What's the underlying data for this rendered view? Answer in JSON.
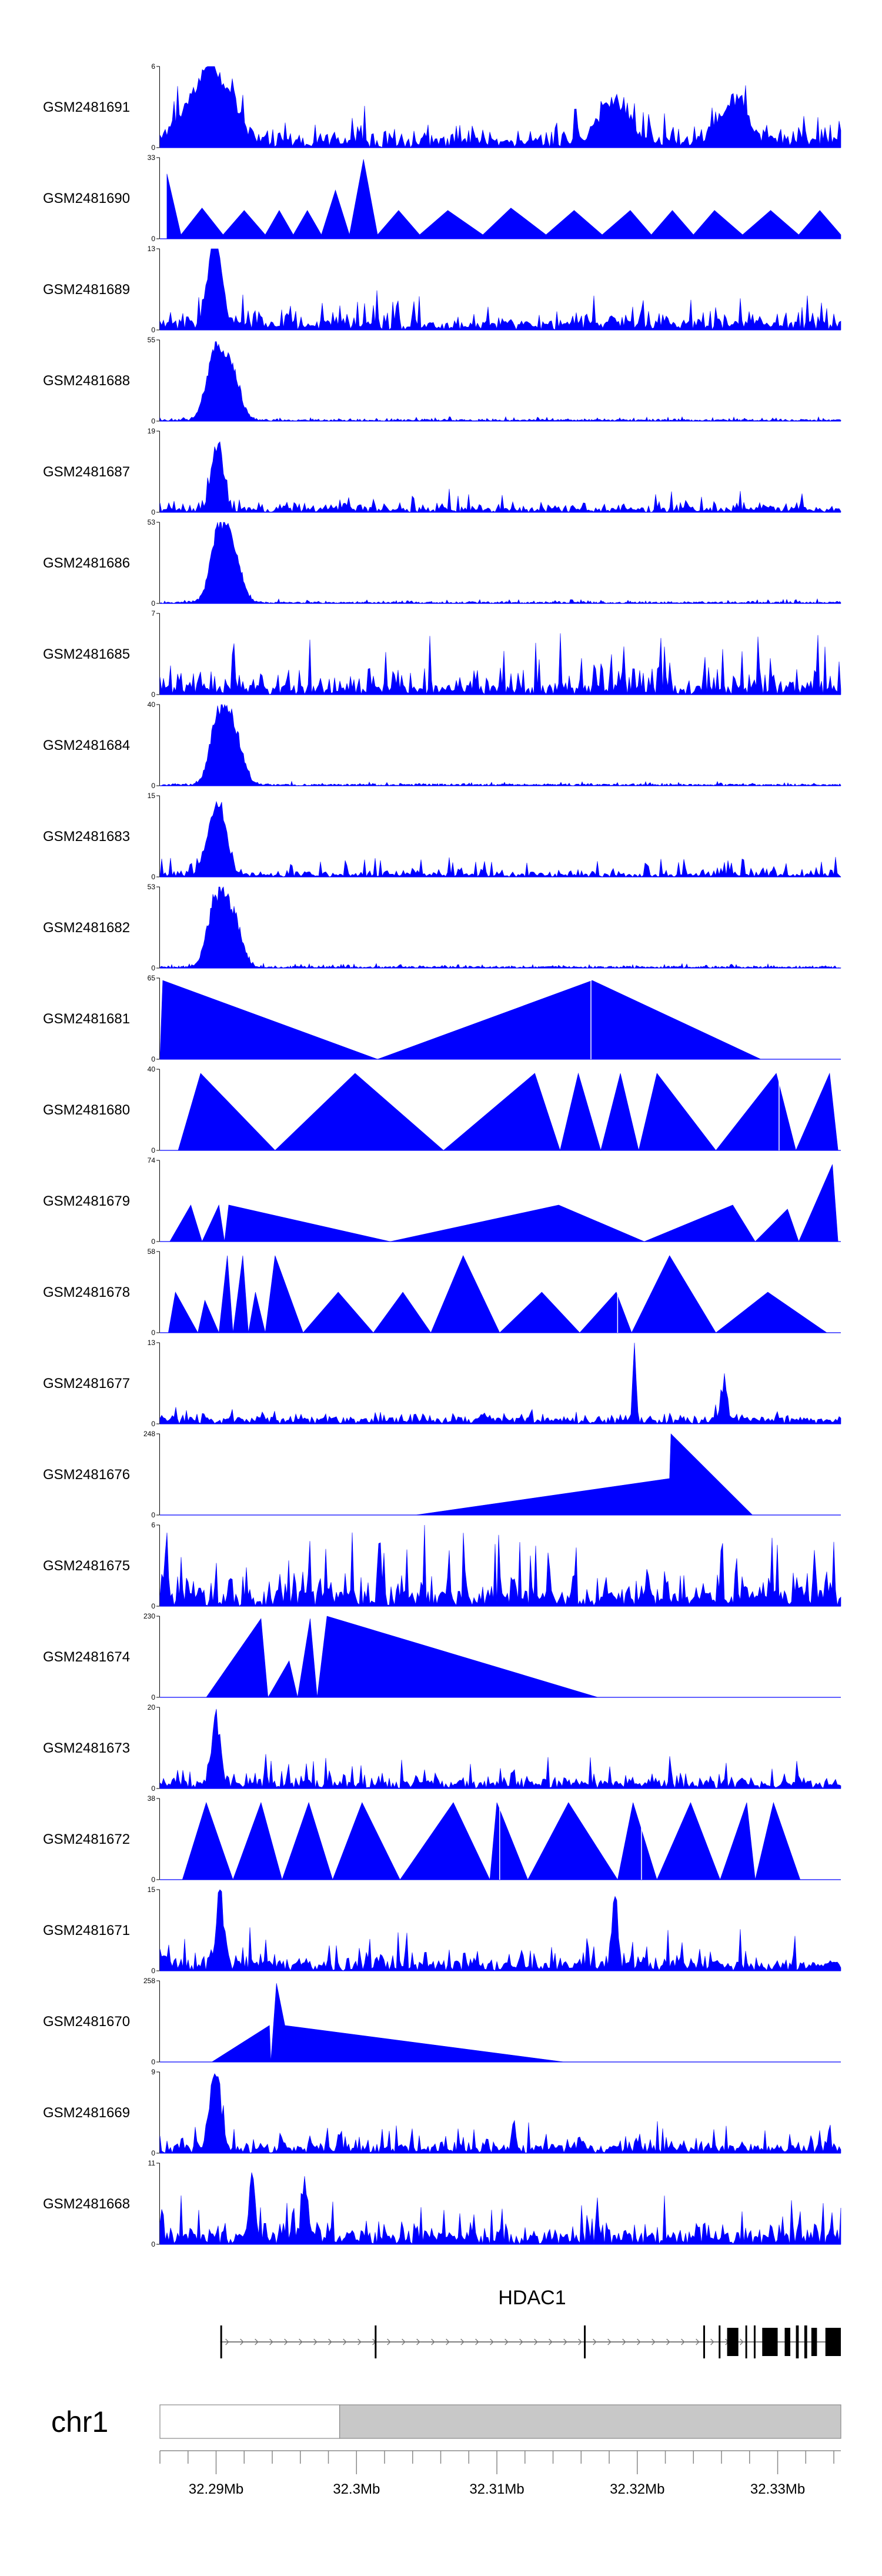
{
  "chart_data": {
    "type": "area",
    "fill_color": "#0000ff",
    "region_start_mb": 32.286,
    "region_end_mb": 32.3345,
    "tracks": [
      {
        "name": "GSM2481691",
        "ymax": "6",
        "ymin": "0",
        "profile": "noise",
        "baseline": 0.12,
        "noise": 0.5,
        "peaks": [
          [
            32.2895,
            1.0,
            0.0015
          ],
          [
            32.3183,
            0.6,
            0.001
          ],
          [
            32.3268,
            0.55,
            0.001
          ]
        ],
        "ghost_x": []
      },
      {
        "name": "GSM2481690",
        "ymax": "33",
        "ymin": "0",
        "profile": "tri",
        "baseline": 0,
        "noise": 0,
        "peaks": [
          [
            32.2865,
            0.8
          ],
          [
            32.2875,
            0.05
          ],
          [
            32.289,
            0.38
          ],
          [
            32.2905,
            0.05
          ],
          [
            32.292,
            0.35
          ],
          [
            32.2935,
            0.05
          ],
          [
            32.2945,
            0.35
          ],
          [
            32.2955,
            0.05
          ],
          [
            32.2965,
            0.35
          ],
          [
            32.2975,
            0.05
          ],
          [
            32.2985,
            0.6
          ],
          [
            32.2995,
            0.05
          ],
          [
            32.3005,
            0.98
          ],
          [
            32.3015,
            0.05
          ],
          [
            32.303,
            0.35
          ],
          [
            32.3045,
            0.05
          ],
          [
            32.3065,
            0.35
          ],
          [
            32.309,
            0.05
          ],
          [
            32.311,
            0.38
          ],
          [
            32.3135,
            0.05
          ],
          [
            32.3155,
            0.35
          ],
          [
            32.3175,
            0.05
          ],
          [
            32.3195,
            0.35
          ],
          [
            32.321,
            0.05
          ],
          [
            32.3225,
            0.35
          ],
          [
            32.324,
            0.05
          ],
          [
            32.3255,
            0.35
          ],
          [
            32.3275,
            0.05
          ],
          [
            32.3295,
            0.35
          ],
          [
            32.3315,
            0.05
          ],
          [
            32.333,
            0.35
          ],
          [
            32.3345,
            0.05
          ]
        ],
        "ghost_x": []
      },
      {
        "name": "GSM2481689",
        "ymax": "13",
        "ymin": "0",
        "profile": "noise",
        "baseline": 0.12,
        "noise": 0.38,
        "peaks": [
          [
            32.2901,
            0.9,
            0.0004
          ],
          [
            32.2896,
            0.6,
            0.0004
          ]
        ],
        "ghost_x": []
      },
      {
        "name": "GSM2481688",
        "ymax": "55",
        "ymin": "0",
        "profile": "peak",
        "baseline": 0.02,
        "noise": 0.04,
        "peaks": [
          [
            32.2899,
            0.95,
            0.0006
          ],
          [
            32.2911,
            0.7,
            0.0006
          ]
        ],
        "ghost_x": []
      },
      {
        "name": "GSM2481687",
        "ymax": "19",
        "ymin": "0",
        "profile": "noise",
        "baseline": 0.06,
        "noise": 0.25,
        "peaks": [
          [
            32.2901,
            0.95,
            0.0004
          ]
        ],
        "ghost_x": []
      },
      {
        "name": "GSM2481686",
        "ymax": "53",
        "ymin": "0",
        "profile": "peak",
        "baseline": 0.02,
        "noise": 0.04,
        "peaks": [
          [
            32.2902,
            0.95,
            0.0006
          ],
          [
            32.2912,
            0.65,
            0.0006
          ]
        ],
        "ghost_x": []
      },
      {
        "name": "GSM2481685",
        "ymax": "7",
        "ymin": "0",
        "profile": "noise",
        "baseline": 0.12,
        "noise": 0.7,
        "peaks": [],
        "ghost_x": []
      },
      {
        "name": "GSM2481684",
        "ymax": "40",
        "ymin": "0",
        "profile": "peak",
        "baseline": 0.02,
        "noise": 0.04,
        "peaks": [
          [
            32.2902,
            0.95,
            0.0006
          ],
          [
            32.2913,
            0.7,
            0.0006
          ]
        ],
        "ghost_x": []
      },
      {
        "name": "GSM2481683",
        "ymax": "15",
        "ymin": "0",
        "profile": "noise",
        "baseline": 0.04,
        "noise": 0.22,
        "peaks": [
          [
            32.2903,
            0.9,
            0.0005
          ],
          [
            32.2895,
            0.4,
            0.0005
          ]
        ],
        "ghost_x": []
      },
      {
        "name": "GSM2481682",
        "ymax": "53",
        "ymin": "0",
        "profile": "peak",
        "baseline": 0.02,
        "noise": 0.04,
        "peaks": [
          [
            32.29,
            0.95,
            0.0006
          ],
          [
            32.2912,
            0.7,
            0.0006
          ]
        ],
        "ghost_x": []
      },
      {
        "name": "GSM2481681",
        "ymax": "65",
        "ymin": "0",
        "profile": "tri",
        "baseline": 0,
        "noise": 0,
        "peaks": [
          [
            32.286,
            0.0
          ],
          [
            32.2862,
            0.97
          ],
          [
            32.3015,
            0.0
          ],
          [
            32.3168,
            0.97
          ],
          [
            32.3288,
            0.0
          ]
        ],
        "ghost_x": [
          32.3167
        ]
      },
      {
        "name": "GSM2481680",
        "ymax": "40",
        "ymin": "0",
        "profile": "tri",
        "baseline": 0,
        "noise": 0,
        "peaks": [
          [
            32.2873,
            0.0
          ],
          [
            32.2889,
            0.95
          ],
          [
            32.2942,
            0.0
          ],
          [
            32.2999,
            0.95
          ],
          [
            32.3062,
            0.0
          ],
          [
            32.3127,
            0.95
          ],
          [
            32.3145,
            0.0
          ],
          [
            32.3158,
            0.95
          ],
          [
            32.3174,
            0.0
          ],
          [
            32.3188,
            0.95
          ],
          [
            32.3201,
            0.0
          ],
          [
            32.3214,
            0.95
          ],
          [
            32.3256,
            0.0
          ],
          [
            32.3299,
            0.95
          ],
          [
            32.3313,
            0.0
          ],
          [
            32.3337,
            0.95
          ],
          [
            32.3343,
            0.0
          ]
        ],
        "ghost_x": [
          32.3301
        ]
      },
      {
        "name": "GSM2481679",
        "ymax": "74",
        "ymin": "0",
        "profile": "tri",
        "baseline": 0,
        "noise": 0,
        "peaks": [
          [
            32.2867,
            0.0
          ],
          [
            32.2882,
            0.45
          ],
          [
            32.289,
            0.0
          ],
          [
            32.2902,
            0.45
          ],
          [
            32.2906,
            0.0
          ],
          [
            32.2909,
            0.45
          ],
          [
            32.3024,
            0.0
          ],
          [
            32.3144,
            0.45
          ],
          [
            32.3205,
            0.0
          ],
          [
            32.3268,
            0.45
          ],
          [
            32.3284,
            0.0
          ],
          [
            32.3307,
            0.4
          ],
          [
            32.3315,
            0.0
          ],
          [
            32.3339,
            0.95
          ],
          [
            32.3343,
            0.0
          ]
        ],
        "ghost_x": []
      },
      {
        "name": "GSM2481678",
        "ymax": "58",
        "ymin": "0",
        "profile": "tri",
        "baseline": 0,
        "noise": 0,
        "peaks": [
          [
            32.2866,
            0.0
          ],
          [
            32.2871,
            0.5
          ],
          [
            32.2887,
            0.0
          ],
          [
            32.2892,
            0.4
          ],
          [
            32.2902,
            0.0
          ],
          [
            32.2908,
            0.95
          ],
          [
            32.2912,
            0.0
          ],
          [
            32.2919,
            0.95
          ],
          [
            32.2923,
            0.0
          ],
          [
            32.2928,
            0.5
          ],
          [
            32.2935,
            0.0
          ],
          [
            32.2942,
            0.95
          ],
          [
            32.2962,
            0.0
          ],
          [
            32.2987,
            0.5
          ],
          [
            32.3012,
            0.0
          ],
          [
            32.3033,
            0.5
          ],
          [
            32.3053,
            0.0
          ],
          [
            32.3076,
            0.95
          ],
          [
            32.3102,
            0.0
          ],
          [
            32.3132,
            0.5
          ],
          [
            32.3159,
            0.0
          ],
          [
            32.3185,
            0.5
          ],
          [
            32.3196,
            0.0
          ],
          [
            32.3223,
            0.95
          ],
          [
            32.3256,
            0.0
          ],
          [
            32.3293,
            0.5
          ],
          [
            32.3335,
            0.0
          ]
        ],
        "ghost_x": [
          32.3186
        ]
      },
      {
        "name": "GSM2481677",
        "ymax": "13",
        "ymin": "0",
        "profile": "noise",
        "baseline": 0.08,
        "noise": 0.2,
        "peaks": [
          [
            32.3198,
            0.97,
            0.00012
          ],
          [
            32.3262,
            0.55,
            0.0002
          ]
        ],
        "ghost_x": []
      },
      {
        "name": "GSM2481676",
        "ymax": "248",
        "ymin": "0",
        "profile": "tri",
        "baseline": 0,
        "noise": 0,
        "peaks": [
          [
            32.3042,
            0.0
          ],
          [
            32.3223,
            0.45
          ],
          [
            32.3224,
            1.0
          ],
          [
            32.3282,
            0.0
          ]
        ],
        "ghost_x": []
      },
      {
        "name": "GSM2481675",
        "ymax": "6",
        "ymin": "0",
        "profile": "noise",
        "baseline": 0.2,
        "noise": 0.85,
        "peaks": [],
        "ghost_x": []
      },
      {
        "name": "GSM2481674",
        "ymax": "230",
        "ymin": "0",
        "profile": "tri",
        "baseline": 0,
        "noise": 0,
        "peaks": [
          [
            32.2893,
            0.0
          ],
          [
            32.2932,
            0.97
          ],
          [
            32.2937,
            0.0
          ],
          [
            32.2952,
            0.45
          ],
          [
            32.2958,
            0.0
          ],
          [
            32.2967,
            0.97
          ],
          [
            32.2972,
            0.0
          ],
          [
            32.2979,
            1.0
          ],
          [
            32.3172,
            0.0
          ]
        ],
        "ghost_x": []
      },
      {
        "name": "GSM2481673",
        "ymax": "20",
        "ymin": "0",
        "profile": "noise",
        "baseline": 0.1,
        "noise": 0.35,
        "peaks": [
          [
            32.29,
            0.95,
            0.0003
          ]
        ],
        "ghost_x": []
      },
      {
        "name": "GSM2481672",
        "ymax": "38",
        "ymin": "0",
        "profile": "tri",
        "baseline": 0,
        "noise": 0,
        "peaks": [
          [
            32.2876,
            0.0
          ],
          [
            32.2893,
            0.95
          ],
          [
            32.2912,
            0.0
          ],
          [
            32.2932,
            0.95
          ],
          [
            32.2947,
            0.0
          ],
          [
            32.2966,
            0.95
          ],
          [
            32.2983,
            0.0
          ],
          [
            32.3004,
            0.95
          ],
          [
            32.3031,
            0.0
          ],
          [
            32.3069,
            0.95
          ],
          [
            32.3095,
            0.0
          ],
          [
            32.31,
            0.95
          ],
          [
            32.3122,
            0.0
          ],
          [
            32.3151,
            0.95
          ],
          [
            32.3186,
            0.0
          ],
          [
            32.3197,
            0.95
          ],
          [
            32.3214,
            0.0
          ],
          [
            32.3238,
            0.95
          ],
          [
            32.3259,
            0.0
          ],
          [
            32.3278,
            0.95
          ],
          [
            32.3284,
            0.0
          ],
          [
            32.3297,
            0.95
          ],
          [
            32.3316,
            0.0
          ]
        ],
        "ghost_x": [
          32.3102,
          32.3203
        ]
      },
      {
        "name": "GSM2481671",
        "ymax": "15",
        "ymin": "0",
        "profile": "noise",
        "baseline": 0.12,
        "noise": 0.45,
        "peaks": [
          [
            32.2903,
            0.95,
            0.0003
          ],
          [
            32.3184,
            0.95,
            0.0002
          ]
        ],
        "ghost_x": []
      },
      {
        "name": "GSM2481670",
        "ymax": "258",
        "ymin": "0",
        "profile": "tri",
        "baseline": 0,
        "noise": 0,
        "peaks": [
          [
            32.2897,
            0.0
          ],
          [
            32.2938,
            0.45
          ],
          [
            32.2939,
            0.0
          ],
          [
            32.2943,
            0.97
          ],
          [
            32.2949,
            0.45
          ],
          [
            32.3148,
            0.0
          ]
        ],
        "ghost_x": []
      },
      {
        "name": "GSM2481669",
        "ymax": "9",
        "ymin": "0",
        "profile": "noise",
        "baseline": 0.1,
        "noise": 0.35,
        "peaks": [
          [
            32.2901,
            0.95,
            0.0003
          ],
          [
            32.2896,
            0.5,
            0.0003
          ]
        ],
        "ghost_x": []
      },
      {
        "name": "GSM2481668",
        "ymax": "11",
        "ymin": "0",
        "profile": "noise",
        "baseline": 0.15,
        "noise": 0.5,
        "peaks": [
          [
            32.2963,
            0.9,
            0.0002
          ],
          [
            32.2926,
            0.8,
            0.0002
          ]
        ],
        "ghost_x": []
      }
    ],
    "gene": {
      "name": "HDAC1",
      "strand": "+",
      "start_mb": 32.2903,
      "end_mb": 32.3345,
      "exons_mb": [
        [
          32.2903,
          32.29035
        ],
        [
          32.3013,
          32.30135
        ],
        [
          32.3162,
          32.31625
        ],
        [
          32.3247,
          32.32475
        ],
        [
          32.3258,
          32.32585
        ],
        [
          32.3264,
          32.3272
        ],
        [
          32.3277,
          32.3278
        ],
        [
          32.3283,
          32.3284
        ],
        [
          32.3289,
          32.33
        ],
        [
          32.3305,
          32.3309
        ],
        [
          32.3313,
          32.3315
        ],
        [
          32.3319,
          32.3321
        ],
        [
          32.3324,
          32.3328
        ],
        [
          32.3334,
          32.3345
        ]
      ]
    },
    "chromosome": {
      "name": "chr1",
      "bar_split_mb": 32.2988,
      "xticks": [
        "32.29Mb",
        "32.3Mb",
        "32.31Mb",
        "32.32Mb",
        "32.33Mb"
      ],
      "xtick_values": [
        32.29,
        32.3,
        32.31,
        32.32,
        32.33
      ],
      "minor_tick_step": 0.002
    }
  }
}
